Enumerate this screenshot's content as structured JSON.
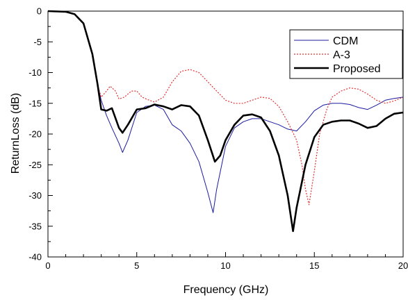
{
  "chart_data": {
    "type": "line",
    "title": "",
    "xlabel": "Frequency (GHz)",
    "ylabel": "ReturnLoss (dB)",
    "xlim": [
      0,
      20
    ],
    "ylim": [
      -40,
      0
    ],
    "xticks": [
      0,
      5,
      10,
      15,
      20
    ],
    "yticks": [
      0,
      -5,
      -10,
      -15,
      -20,
      -25,
      -30,
      -35,
      -40
    ],
    "xtick_labels": [
      "0",
      "5",
      "10",
      "15",
      "20"
    ],
    "ytick_labels": [
      "0",
      "-5",
      "-10",
      "-15",
      "-20",
      "-25",
      "-30",
      "-35",
      "-40"
    ],
    "grid": false,
    "legend_position": "top-right",
    "series": [
      {
        "name": "CDM",
        "color": "#1a1aa0",
        "style": "solid",
        "points": [
          [
            0,
            0
          ],
          [
            1,
            -0.1
          ],
          [
            1.5,
            -0.5
          ],
          [
            2,
            -2
          ],
          [
            2.5,
            -7
          ],
          [
            2.8,
            -12
          ],
          [
            3,
            -14.5
          ],
          [
            3.3,
            -17
          ],
          [
            3.6,
            -19
          ],
          [
            4,
            -21.5
          ],
          [
            4.2,
            -23
          ],
          [
            4.5,
            -21
          ],
          [
            5,
            -16.5
          ],
          [
            5.5,
            -15.5
          ],
          [
            6,
            -15.3
          ],
          [
            6.5,
            -16
          ],
          [
            7,
            -18.5
          ],
          [
            7.5,
            -19.5
          ],
          [
            8,
            -21.5
          ],
          [
            8.5,
            -24.5
          ],
          [
            9,
            -29.5
          ],
          [
            9.3,
            -32.8
          ],
          [
            9.5,
            -29
          ],
          [
            10,
            -22
          ],
          [
            10.5,
            -19
          ],
          [
            11,
            -18
          ],
          [
            11.5,
            -17.5
          ],
          [
            12,
            -17.5
          ],
          [
            12.5,
            -18
          ],
          [
            13,
            -18.5
          ],
          [
            13.5,
            -19.2
          ],
          [
            14,
            -19.5
          ],
          [
            14.5,
            -18
          ],
          [
            15,
            -16.2
          ],
          [
            15.5,
            -15.3
          ],
          [
            16,
            -15
          ],
          [
            16.5,
            -15
          ],
          [
            17,
            -15.2
          ],
          [
            17.5,
            -15.7
          ],
          [
            18,
            -16
          ],
          [
            18.5,
            -15.3
          ],
          [
            19,
            -14.5
          ],
          [
            19.5,
            -14.2
          ],
          [
            20,
            -14
          ]
        ]
      },
      {
        "name": "A-3",
        "color": "#e03030",
        "style": "dotted",
        "points": [
          [
            0,
            0
          ],
          [
            1,
            -0.1
          ],
          [
            1.5,
            -0.5
          ],
          [
            2,
            -2
          ],
          [
            2.5,
            -7
          ],
          [
            2.8,
            -12
          ],
          [
            3,
            -14
          ],
          [
            3.3,
            -13
          ],
          [
            3.5,
            -12.2
          ],
          [
            3.8,
            -13
          ],
          [
            4,
            -14.3
          ],
          [
            4.3,
            -14
          ],
          [
            4.7,
            -13
          ],
          [
            5,
            -13
          ],
          [
            5.3,
            -14
          ],
          [
            5.7,
            -14.5
          ],
          [
            6,
            -14.8
          ],
          [
            6.5,
            -14
          ],
          [
            7,
            -11.5
          ],
          [
            7.5,
            -9.8
          ],
          [
            8,
            -9.5
          ],
          [
            8.5,
            -10
          ],
          [
            9,
            -11.5
          ],
          [
            9.5,
            -13
          ],
          [
            10,
            -14.5
          ],
          [
            10.5,
            -15
          ],
          [
            11,
            -15
          ],
          [
            11.5,
            -14.5
          ],
          [
            12,
            -14
          ],
          [
            12.5,
            -14.2
          ],
          [
            13,
            -15.5
          ],
          [
            13.5,
            -18
          ],
          [
            14,
            -21
          ],
          [
            14.3,
            -25
          ],
          [
            14.5,
            -29
          ],
          [
            14.7,
            -31.5
          ],
          [
            15,
            -26
          ],
          [
            15.3,
            -20
          ],
          [
            15.7,
            -16
          ],
          [
            16,
            -14
          ],
          [
            16.5,
            -13
          ],
          [
            17,
            -12.5
          ],
          [
            17.5,
            -12.7
          ],
          [
            18,
            -13.5
          ],
          [
            18.5,
            -14.5
          ],
          [
            19,
            -15
          ],
          [
            19.5,
            -14.6
          ],
          [
            20,
            -14
          ]
        ]
      },
      {
        "name": "Proposed",
        "color": "#000000",
        "style": "solid-thick",
        "points": [
          [
            0,
            0
          ],
          [
            1,
            -0.1
          ],
          [
            1.5,
            -0.5
          ],
          [
            2,
            -2
          ],
          [
            2.5,
            -7
          ],
          [
            2.8,
            -12
          ],
          [
            3,
            -16
          ],
          [
            3.3,
            -16.2
          ],
          [
            3.6,
            -15.8
          ],
          [
            4,
            -19
          ],
          [
            4.2,
            -19.8
          ],
          [
            4.5,
            -18.5
          ],
          [
            5,
            -16
          ],
          [
            5.5,
            -15.8
          ],
          [
            6,
            -15.2
          ],
          [
            6.5,
            -15.5
          ],
          [
            7,
            -16
          ],
          [
            7.5,
            -15.3
          ],
          [
            8,
            -15.5
          ],
          [
            8.5,
            -17
          ],
          [
            9,
            -21
          ],
          [
            9.4,
            -24.5
          ],
          [
            9.7,
            -23.5
          ],
          [
            10,
            -21
          ],
          [
            10.5,
            -18.5
          ],
          [
            11,
            -17
          ],
          [
            11.5,
            -16.8
          ],
          [
            12,
            -17.3
          ],
          [
            12.5,
            -19.5
          ],
          [
            13,
            -23.5
          ],
          [
            13.5,
            -30
          ],
          [
            13.8,
            -35.8
          ],
          [
            14,
            -32
          ],
          [
            14.5,
            -25
          ],
          [
            15,
            -20.5
          ],
          [
            15.5,
            -18.5
          ],
          [
            16,
            -18
          ],
          [
            16.5,
            -17.8
          ],
          [
            17,
            -17.8
          ],
          [
            17.5,
            -18.3
          ],
          [
            18,
            -19
          ],
          [
            18.5,
            -18.7
          ],
          [
            19,
            -17.5
          ],
          [
            19.5,
            -16.7
          ],
          [
            20,
            -16.5
          ]
        ]
      }
    ]
  }
}
